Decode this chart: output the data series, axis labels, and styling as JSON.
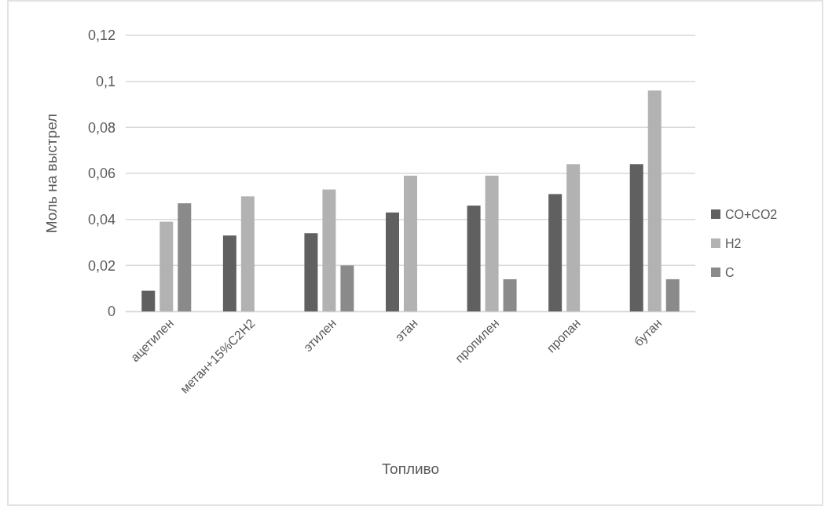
{
  "chart_data": {
    "type": "bar",
    "xlabel": "Топливо",
    "ylabel": "Моль на выстрел",
    "categories": [
      "ацетилен",
      "метан+15%С2Н2",
      "этилен",
      "этан",
      "пропилен",
      "пропан",
      "бутан"
    ],
    "series": [
      {
        "name": "CO+CO2",
        "color": "#606060",
        "values": [
          0.009,
          0.033,
          0.034,
          0.043,
          0.046,
          0.051,
          0.064
        ]
      },
      {
        "name": "H2",
        "color": "#b2b2b2",
        "values": [
          0.039,
          0.05,
          0.053,
          0.059,
          0.059,
          0.064,
          0.096
        ]
      },
      {
        "name": "C",
        "color": "#8a8a8a",
        "values": [
          0.047,
          null,
          0.02,
          null,
          0.014,
          null,
          0.014
        ]
      }
    ],
    "ylim": [
      0,
      0.12
    ],
    "yticks": [
      0,
      {
        "value": 0.02,
        "label": "0,02"
      },
      {
        "value": 0.04,
        "label": "0,04"
      },
      {
        "value": 0.06,
        "label": "0,06"
      },
      {
        "value": 0.08,
        "label": "0,08"
      },
      {
        "value": 0.1,
        "label": "0,1"
      },
      {
        "value": 0.12,
        "label": "0,12"
      }
    ],
    "grid": "y",
    "legend": "right"
  }
}
